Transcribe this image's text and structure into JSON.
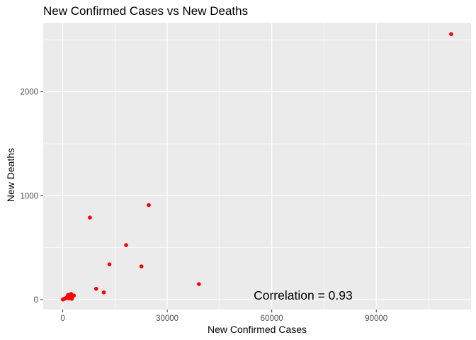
{
  "chart_data": {
    "type": "scatter",
    "title": "New Confirmed Cases vs New Deaths",
    "xlabel": "New Confirmed Cases",
    "ylabel": "New Deaths",
    "xlim": [
      -5600,
      117200
    ],
    "ylim": [
      -95,
      2665
    ],
    "x_ticks": [
      0,
      30000,
      60000,
      90000
    ],
    "x_tick_labels": [
      "0",
      "30000",
      "60000",
      "90000"
    ],
    "y_ticks": [
      0,
      1000,
      2000
    ],
    "y_tick_labels": [
      "0",
      "1000",
      "2000"
    ],
    "grid": true,
    "panel_color": "#ebebeb",
    "point_color": "#ff0000",
    "annotation": {
      "text": "Correlation = 0.93",
      "x": 69000,
      "y": 40
    },
    "points": [
      {
        "x": 111500,
        "y": 2555
      },
      {
        "x": 24700,
        "y": 910
      },
      {
        "x": 7800,
        "y": 790
      },
      {
        "x": 18200,
        "y": 525
      },
      {
        "x": 13400,
        "y": 340
      },
      {
        "x": 22600,
        "y": 320
      },
      {
        "x": 39100,
        "y": 150
      },
      {
        "x": 9600,
        "y": 105
      },
      {
        "x": 11800,
        "y": 70
      },
      {
        "x": 2400,
        "y": 55
      },
      {
        "x": 1500,
        "y": 45
      },
      {
        "x": 3200,
        "y": 40
      },
      {
        "x": 2800,
        "y": 30
      },
      {
        "x": 2000,
        "y": 25
      },
      {
        "x": 1100,
        "y": 20
      },
      {
        "x": 600,
        "y": 10
      },
      {
        "x": 250,
        "y": 5
      },
      {
        "x": 50,
        "y": 2
      },
      {
        "x": 1700,
        "y": 12
      },
      {
        "x": 2600,
        "y": 8
      }
    ]
  }
}
